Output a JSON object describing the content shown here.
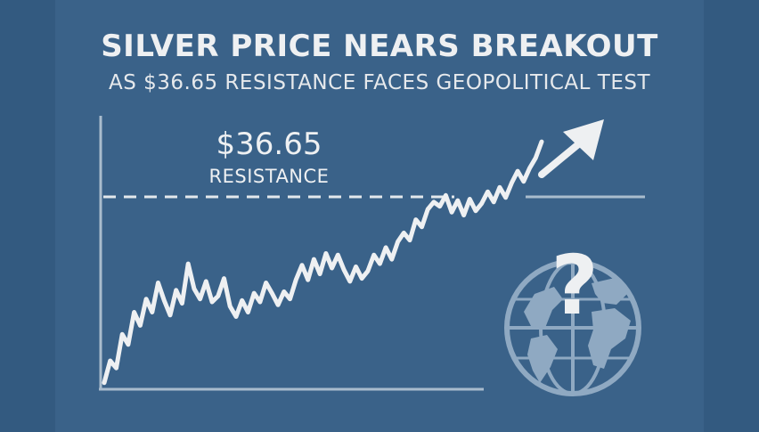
{
  "header": {
    "title": "SILVER PRICE NEARS BREAKOUT",
    "subtitle": "AS $36.65 RESISTANCE FACES GEOPOLITICAL TEST"
  },
  "resistance_label": {
    "value": "$36.65",
    "caption": "RESISTANCE"
  },
  "icons": {
    "globe": "globe-icon",
    "question": "question-mark-icon",
    "arrow": "up-arrow-icon"
  },
  "colors": {
    "background": "#3a6289",
    "line": "#eef0f2",
    "axis": "#a9bccd",
    "globe": "#8fa9c2"
  },
  "chart_data": {
    "type": "line",
    "title": "SILVER PRICE NEARS BREAKOUT",
    "subtitle": "AS $36.65 RESISTANCE FACES GEOPOLITICAL TEST",
    "xlabel": "",
    "ylabel": "",
    "grid": false,
    "annotations": [
      {
        "text": "$36.65",
        "type": "horizontal-line-label"
      },
      {
        "text": "RESISTANCE",
        "type": "horizontal-line-label"
      }
    ],
    "resistance_level": 36.65,
    "series": [
      {
        "values": [
          24.0,
          25.5,
          25.0,
          27.3,
          26.6,
          28.8,
          27.9,
          29.7,
          28.8,
          30.8,
          29.6,
          28.6,
          30.3,
          29.4,
          32.1,
          30.4,
          29.7,
          30.9,
          29.5,
          29.9,
          31.1,
          29.2,
          28.5,
          29.6,
          28.8,
          30.1,
          29.5,
          30.8,
          30.1,
          29.3,
          30.2,
          29.7,
          31.0,
          32.0,
          31.0,
          32.4,
          31.4,
          32.8,
          31.8,
          32.7,
          31.7,
          30.9,
          31.9,
          31.1,
          31.6,
          32.7,
          32.1,
          33.2,
          32.4,
          33.6,
          34.2,
          33.7,
          35.1,
          34.6,
          35.8,
          36.3,
          36.0,
          36.75,
          35.6,
          36.4,
          35.4,
          36.5,
          35.7,
          36.2,
          37.0,
          36.3,
          37.3,
          36.6,
          37.6,
          38.4,
          37.7,
          38.6,
          39.3,
          40.4
        ]
      }
    ]
  }
}
